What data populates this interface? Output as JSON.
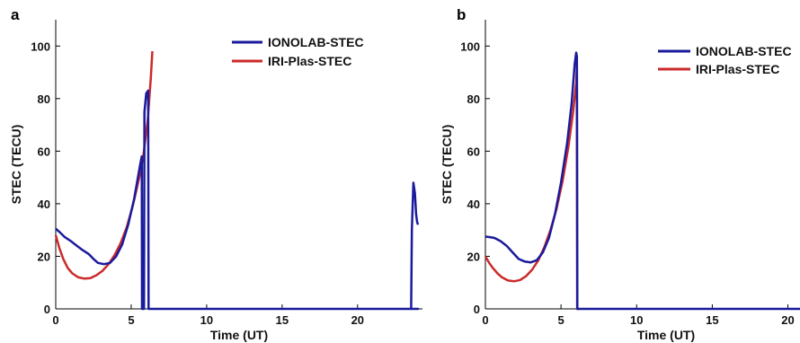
{
  "chart_data": [
    {
      "panel_label": "a",
      "type": "line",
      "xlabel": "Time (UT)",
      "ylabel": "STEC (TECU)",
      "xlim": [
        0,
        24.3
      ],
      "ylim": [
        0,
        110
      ],
      "xticks": [
        "0",
        "5",
        "10",
        "15",
        "20"
      ],
      "yticks": [
        "0",
        "20",
        "40",
        "60",
        "80",
        "100"
      ],
      "legend_position": "top-right",
      "series": [
        {
          "name": "IONOLAB-STEC",
          "color": "#1a1a9c",
          "points": [
            [
              0,
              30.5
            ],
            [
              0.3,
              29
            ],
            [
              0.6,
              27.3
            ],
            [
              1,
              25.8
            ],
            [
              1.4,
              24
            ],
            [
              1.8,
              22.3
            ],
            [
              2.2,
              20.8
            ],
            [
              2.5,
              19
            ],
            [
              2.8,
              17.5
            ],
            [
              3.2,
              17
            ],
            [
              3.6,
              17.5
            ],
            [
              4,
              20
            ],
            [
              4.4,
              24.5
            ],
            [
              4.8,
              32
            ],
            [
              5.2,
              42
            ],
            [
              5.6,
              55
            ],
            [
              5.7,
              58
            ],
            [
              5.72,
              0
            ],
            [
              5.85,
              0
            ],
            [
              5.88,
              75
            ],
            [
              6.0,
              82
            ],
            [
              6.12,
              83
            ],
            [
              6.15,
              0
            ],
            [
              6.3,
              0
            ],
            [
              24,
              0
            ],
            [
              23.55,
              0
            ],
            [
              23.6,
              30
            ],
            [
              23.7,
              48
            ],
            [
              23.8,
              44
            ],
            [
              23.88,
              36
            ],
            [
              23.95,
              33
            ],
            [
              24,
              32
            ]
          ]
        },
        {
          "name": "IRI-Plas-STEC",
          "color": "#cc2a2a",
          "points": [
            [
              0,
              28
            ],
            [
              0.25,
              23
            ],
            [
              0.5,
              19
            ],
            [
              0.8,
              15.5
            ],
            [
              1.1,
              13.5
            ],
            [
              1.5,
              12
            ],
            [
              1.9,
              11.5
            ],
            [
              2.3,
              11.7
            ],
            [
              2.7,
              12.8
            ],
            [
              3.1,
              14.5
            ],
            [
              3.5,
              17
            ],
            [
              3.9,
              20.5
            ],
            [
              4.3,
              25
            ],
            [
              4.7,
              31
            ],
            [
              5.1,
              39
            ],
            [
              5.5,
              49
            ],
            [
              5.8,
              58
            ],
            [
              6.1,
              72
            ],
            [
              6.3,
              88
            ],
            [
              6.4,
              98
            ]
          ]
        }
      ]
    },
    {
      "panel_label": "b",
      "type": "line",
      "xlabel": "Time (UT)",
      "ylabel": "STEC (TECU)",
      "xlim": [
        0,
        20.8
      ],
      "ylim": [
        0,
        110
      ],
      "xticks": [
        "0",
        "5",
        "10",
        "15",
        "20"
      ],
      "yticks": [
        "0",
        "20",
        "40",
        "60",
        "80",
        "100"
      ],
      "legend_position": "top-right",
      "series": [
        {
          "name": "IONOLAB-STEC",
          "color": "#1a1a9c",
          "points": [
            [
              0,
              27.5
            ],
            [
              0.3,
              27.3
            ],
            [
              0.6,
              27
            ],
            [
              1,
              25.8
            ],
            [
              1.4,
              24
            ],
            [
              1.8,
              21.5
            ],
            [
              2.2,
              19
            ],
            [
              2.6,
              18
            ],
            [
              3,
              17.7
            ],
            [
              3.4,
              18.5
            ],
            [
              3.8,
              21.5
            ],
            [
              4.2,
              27
            ],
            [
              4.6,
              36
            ],
            [
              5,
              48
            ],
            [
              5.4,
              63
            ],
            [
              5.7,
              78
            ],
            [
              5.9,
              93
            ],
            [
              6.0,
              97.5
            ],
            [
              6.05,
              96
            ],
            [
              6.08,
              0
            ],
            [
              6.2,
              0
            ],
            [
              20.8,
              0
            ]
          ]
        },
        {
          "name": "IRI-Plas-STEC",
          "color": "#cc2a2a",
          "points": [
            [
              0,
              20
            ],
            [
              0.25,
              17.5
            ],
            [
              0.5,
              15.5
            ],
            [
              0.8,
              13.5
            ],
            [
              1.1,
              12
            ],
            [
              1.5,
              10.8
            ],
            [
              1.9,
              10.5
            ],
            [
              2.3,
              11
            ],
            [
              2.7,
              12.5
            ],
            [
              3.1,
              15
            ],
            [
              3.5,
              18.5
            ],
            [
              3.9,
              23.5
            ],
            [
              4.3,
              30
            ],
            [
              4.7,
              38
            ],
            [
              5.1,
              48.5
            ],
            [
              5.5,
              62
            ],
            [
              5.8,
              75
            ],
            [
              6.0,
              86
            ],
            [
              6.05,
              92
            ],
            [
              6.07,
              0
            ],
            [
              6.2,
              0
            ]
          ]
        }
      ]
    }
  ]
}
